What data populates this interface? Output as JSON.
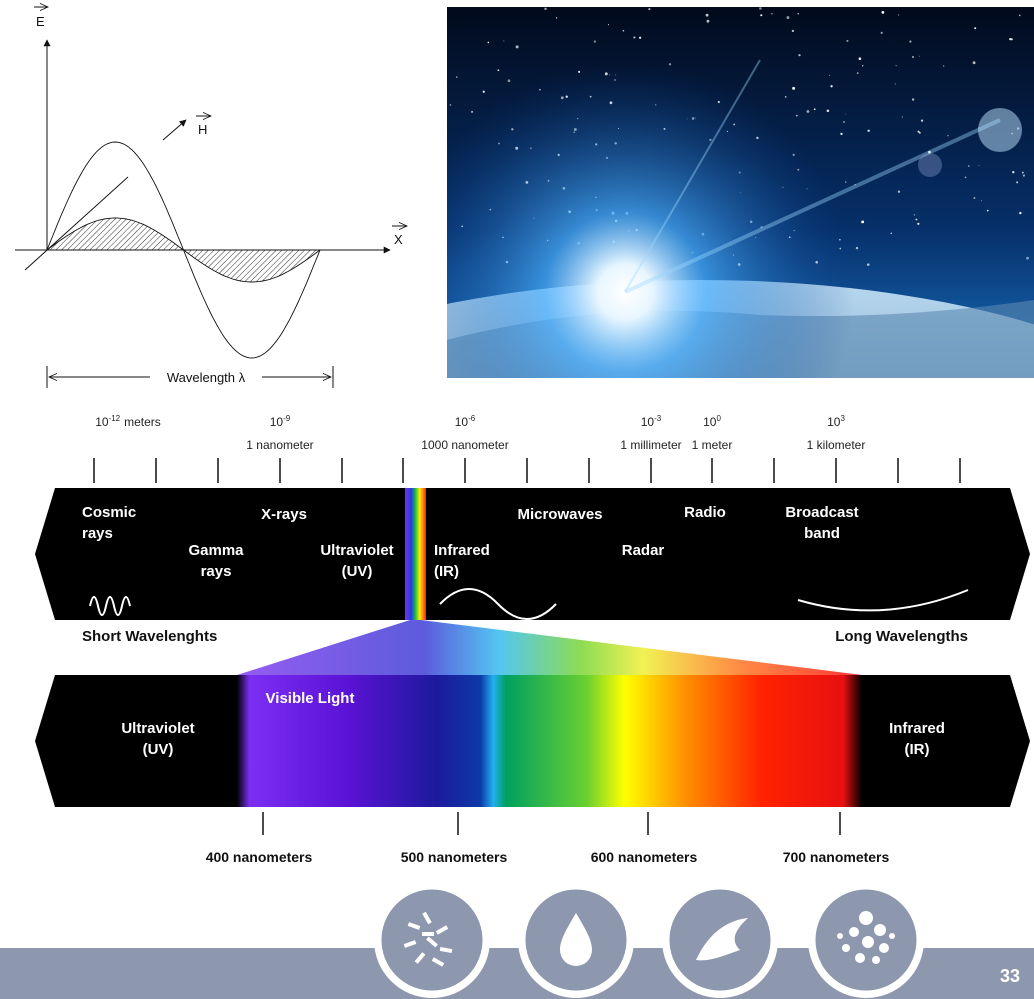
{
  "wave_diagram": {
    "e_label": "E",
    "h_label": "H",
    "x_label": "X",
    "wavelength_label": "Wavelength λ"
  },
  "scale": [
    {
      "base": "10",
      "exp": "-12",
      "unit": "meters"
    },
    {
      "base": "10",
      "exp": "-9",
      "note": "1 nanometer"
    },
    {
      "base": "10",
      "exp": "-6",
      "note": "1000 nanometer"
    },
    {
      "base": "10",
      "exp": "-3",
      "note": "1 millimeter"
    },
    {
      "base": "10",
      "exp": "0",
      "note": "1 meter"
    },
    {
      "base": "10",
      "exp": "3",
      "note": "1 kilometer"
    }
  ],
  "bands": [
    {
      "lines": [
        "Cosmic",
        "rays"
      ]
    },
    {
      "lines": [
        "X-rays"
      ]
    },
    {
      "lines": [
        "Gamma",
        "rays"
      ]
    },
    {
      "lines": [
        "Ultraviolet",
        "(UV)"
      ]
    },
    {
      "lines": [
        "Infrared",
        "(IR)"
      ]
    },
    {
      "lines": [
        "Microwaves"
      ]
    },
    {
      "lines": [
        "Radar"
      ]
    },
    {
      "lines": [
        "Radio"
      ]
    },
    {
      "lines": [
        "Broadcast",
        "band"
      ]
    }
  ],
  "short_label": "Short Wavelenghts",
  "long_label": "Long Wavelengths",
  "visible": {
    "left": [
      "Ultraviolet",
      "(UV)"
    ],
    "title": "Visible Light",
    "right": [
      "Infrared",
      "(IR)"
    ]
  },
  "nanometer_labels": [
    "400 nanometers",
    "500 nanometers",
    "600 nanometers",
    "700 nanometers"
  ],
  "page_number": "33"
}
